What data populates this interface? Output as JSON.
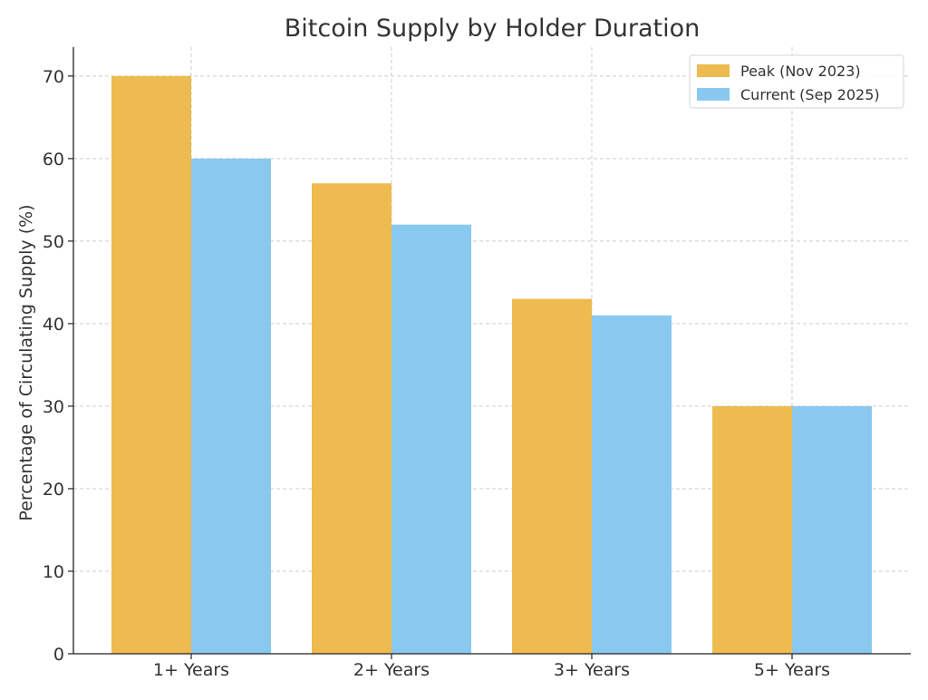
{
  "chart_data": {
    "type": "bar",
    "title": "Bitcoin Supply by Holder Duration",
    "xlabel": "",
    "ylabel": "Percentage of Circulating Supply (%)",
    "categories": [
      "1+ Years",
      "2+ Years",
      "3+ Years",
      "5+ Years"
    ],
    "series": [
      {
        "name": "Peak (Nov 2023)",
        "values": [
          70,
          57,
          43,
          30
        ],
        "color": "#EDBB4F"
      },
      {
        "name": "Current (Sep 2025)",
        "values": [
          60,
          52,
          41,
          30
        ],
        "color": "#89C9EF"
      }
    ],
    "ylim": [
      0,
      73.5
    ],
    "yticks": [
      0,
      10,
      20,
      30,
      40,
      50,
      60,
      70
    ],
    "grid": true,
    "legend": "top-right"
  }
}
